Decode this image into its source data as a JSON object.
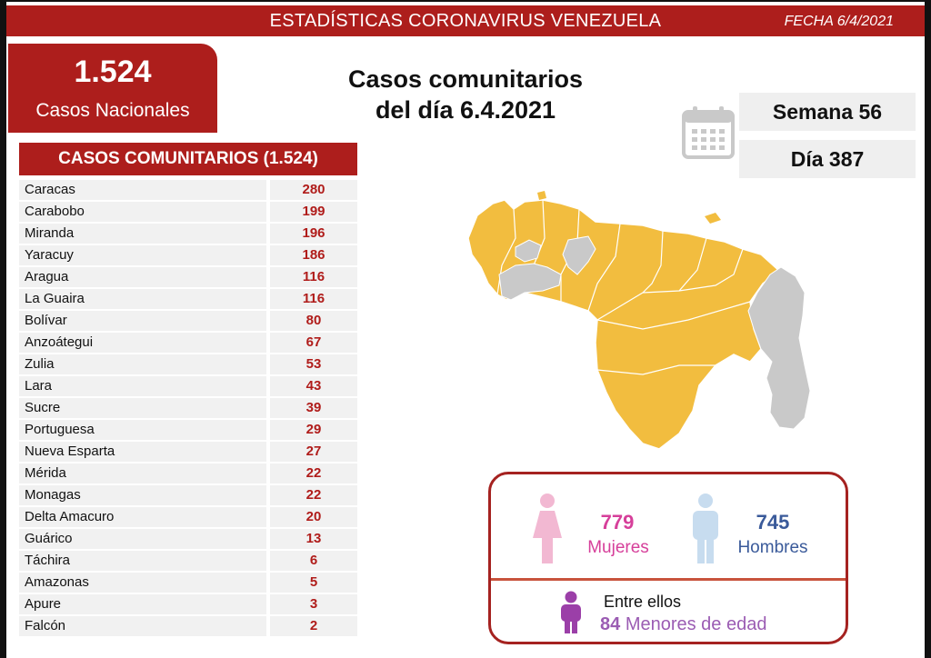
{
  "banner": {
    "title": "ESTADÍSTICAS CORONAVIRUS VENEZUELA",
    "date": "FECHA 6/4/2021"
  },
  "total": {
    "number": "1.524",
    "label": "Casos Nacionales"
  },
  "heading": {
    "line1": "Casos comunitarios",
    "line2": "del día 6.4.2021"
  },
  "week": "Semana 56",
  "day": "Día 387",
  "table": {
    "header": "CASOS COMUNITARIOS (1.524)",
    "rows": [
      {
        "state": "Caracas",
        "cases": "280"
      },
      {
        "state": "Carabobo",
        "cases": "199"
      },
      {
        "state": "Miranda",
        "cases": "196"
      },
      {
        "state": "Yaracuy",
        "cases": "186"
      },
      {
        "state": "Aragua",
        "cases": "116"
      },
      {
        "state": "La Guaira",
        "cases": "116"
      },
      {
        "state": "Bolívar",
        "cases": "80"
      },
      {
        "state": "Anzoátegui",
        "cases": "67"
      },
      {
        "state": "Zulia",
        "cases": "53"
      },
      {
        "state": "Lara",
        "cases": "43"
      },
      {
        "state": "Sucre",
        "cases": "39"
      },
      {
        "state": "Portuguesa",
        "cases": "29"
      },
      {
        "state": "Nueva Esparta",
        "cases": "27"
      },
      {
        "state": "Mérida",
        "cases": "22"
      },
      {
        "state": "Monagas",
        "cases": "22"
      },
      {
        "state": "Delta Amacuro",
        "cases": "20"
      },
      {
        "state": "Guárico",
        "cases": "13"
      },
      {
        "state": "Táchira",
        "cases": "6"
      },
      {
        "state": "Amazonas",
        "cases": "5"
      },
      {
        "state": "Apure",
        "cases": "3"
      },
      {
        "state": "Falcón",
        "cases": "2"
      }
    ]
  },
  "gender": {
    "female_count": "779",
    "female_label": "Mujeres",
    "male_count": "745",
    "male_label": "Hombres",
    "between": "Entre ellos",
    "minors_count": "84",
    "minors_label": "Menores de edad"
  },
  "colors": {
    "brand_red": "#ad1e1c",
    "map_cases": "#f2bd3f",
    "map_no_cases": "#c9c9c9",
    "female": "#d63f9a",
    "male": "#3a5a9a",
    "minors": "#9b5cb3"
  },
  "icons": [
    "calendar-icon",
    "female-icon",
    "male-icon",
    "child-icon",
    "venezuela-map"
  ]
}
